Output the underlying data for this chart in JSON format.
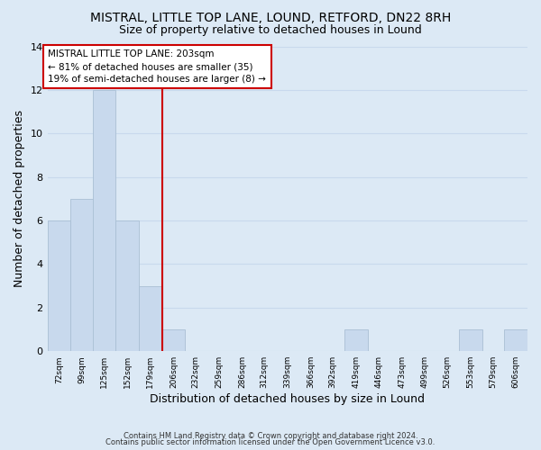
{
  "title": "MISTRAL, LITTLE TOP LANE, LOUND, RETFORD, DN22 8RH",
  "subtitle": "Size of property relative to detached houses in Lound",
  "xlabel": "Distribution of detached houses by size in Lound",
  "ylabel": "Number of detached properties",
  "bar_color": "#c8d9ed",
  "bar_edge_color": "#aabfd4",
  "grid_color": "#c8d9ed",
  "bg_color": "#dce9f5",
  "bin_labels": [
    "72sqm",
    "99sqm",
    "125sqm",
    "152sqm",
    "179sqm",
    "206sqm",
    "232sqm",
    "259sqm",
    "286sqm",
    "312sqm",
    "339sqm",
    "366sqm",
    "392sqm",
    "419sqm",
    "446sqm",
    "473sqm",
    "499sqm",
    "526sqm",
    "553sqm",
    "579sqm",
    "606sqm"
  ],
  "bin_edges": [
    72,
    99,
    125,
    152,
    179,
    206,
    232,
    259,
    286,
    312,
    339,
    366,
    392,
    419,
    446,
    473,
    499,
    526,
    553,
    579,
    606
  ],
  "counts": [
    6,
    7,
    12,
    6,
    3,
    1,
    0,
    0,
    0,
    0,
    0,
    0,
    0,
    1,
    0,
    0,
    0,
    0,
    1,
    0,
    1
  ],
  "vline_x": 206,
  "vline_color": "#cc0000",
  "ylim": [
    0,
    14
  ],
  "yticks": [
    0,
    2,
    4,
    6,
    8,
    10,
    12,
    14
  ],
  "annotation_text": "MISTRAL LITTLE TOP LANE: 203sqm\n← 81% of detached houses are smaller (35)\n19% of semi-detached houses are larger (8) →",
  "annotation_box_color": "#ffffff",
  "annotation_box_edge": "#cc0000",
  "footer1": "Contains HM Land Registry data © Crown copyright and database right 2024.",
  "footer2": "Contains public sector information licensed under the Open Government Licence v3.0."
}
